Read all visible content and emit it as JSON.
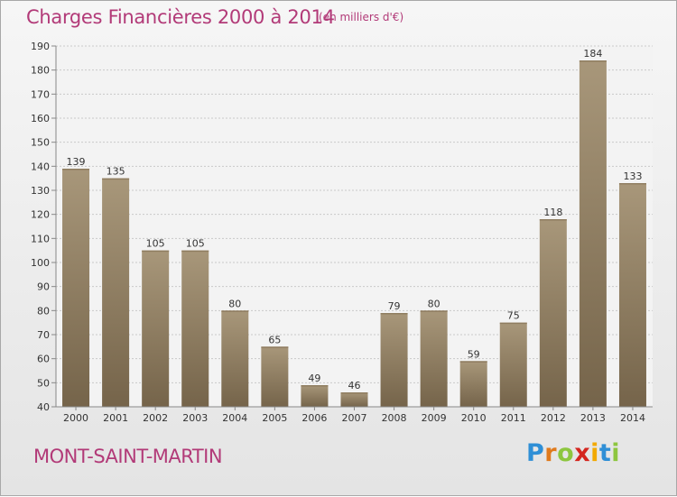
{
  "header": {
    "title": "Charges Financières 2000 à 2014",
    "subtitle": "(en milliers d'€)"
  },
  "place_name": "MONT-SAINT-MARTIN",
  "logo": {
    "text": "Proxiti",
    "letter_colors": [
      "#2f8fd6",
      "#e07a1c",
      "#8dc63f",
      "#d4261f",
      "#f2a900",
      "#2f8fd6",
      "#8dc63f"
    ]
  },
  "colors": {
    "title": "#b23a78",
    "bar_top": "#a8977a",
    "bar_bottom": "#75644a",
    "grid": "#c9c9c9",
    "label": "#333333"
  },
  "chart_data": {
    "type": "bar",
    "title": "Charges Financières 2000 à 2014",
    "subtitle": "(en milliers d'€)",
    "categories": [
      "2000",
      "2001",
      "2002",
      "2003",
      "2004",
      "2005",
      "2006",
      "2007",
      "2008",
      "2009",
      "2010",
      "2011",
      "2012",
      "2013",
      "2014"
    ],
    "values": [
      139,
      135,
      105,
      105,
      80,
      65,
      49,
      46,
      79,
      80,
      59,
      75,
      118,
      184,
      133
    ],
    "ylim": [
      40,
      190
    ],
    "yticks": [
      40,
      50,
      60,
      70,
      80,
      90,
      100,
      110,
      120,
      130,
      140,
      150,
      160,
      170,
      180,
      190
    ],
    "grid": true,
    "data_labels": true
  }
}
